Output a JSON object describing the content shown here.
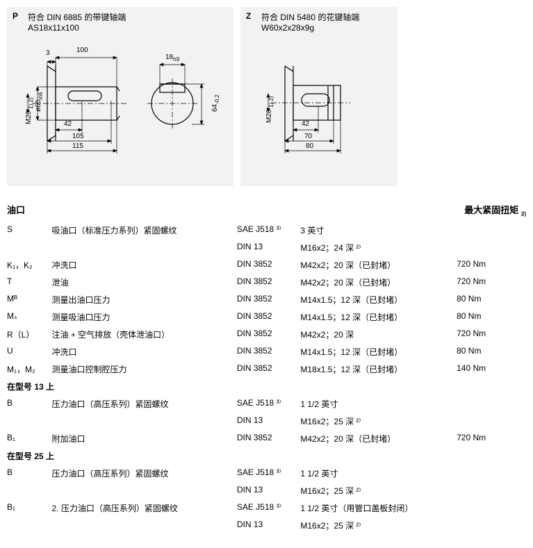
{
  "diagramP": {
    "letter": "P",
    "title": "符合 DIN 6885 的带键轴端",
    "subtitle": "AS18x11x100",
    "labels": {
      "top3": "3",
      "top100": "100",
      "top18": "18",
      "top18sub": "h9",
      "left_diam": "ø60",
      "left_diam_sub": "m6",
      "left_m20": "M20",
      "left_m20_sup": "1) 2)",
      "right_64": "64",
      "right_64_sub": "-0.2",
      "bot42": "42",
      "bot105": "105",
      "bot115": "115"
    }
  },
  "diagramZ": {
    "letter": "Z",
    "title": "符合 DIN 5480 的花键轴端",
    "subtitle": "W60x2x28x9g",
    "labels": {
      "left_m20": "M20",
      "left_m20_sup": "1) 2)",
      "bot42": "42",
      "bot70": "70",
      "bot80": "80"
    }
  },
  "ports": {
    "heading": "油口",
    "torque_heading": "最大紧固扭矩",
    "torque_sup": "2)",
    "rows": [
      {
        "sym": "S",
        "desc": "吸油口（标准压力系列）紧固螺纹",
        "std": "SAE J518 ³⁾",
        "spec": "3 英寸",
        "torque": ""
      },
      {
        "sym": "",
        "desc": "",
        "std": "DIN 13",
        "spec": "M16x2；24 深 ²⁾",
        "torque": ""
      },
      {
        "sym": "K₁，K₂",
        "desc": "冲洗口",
        "std": "DIN 3852",
        "spec": "M42x2；20 深（已封堵）",
        "torque": "720 Nm"
      },
      {
        "sym": "T",
        "desc": "泄油",
        "std": "DIN 3852",
        "spec": "M42x2；20 深（已封堵）",
        "torque": "720 Nm"
      },
      {
        "sym": "Mᴮ",
        "desc": "测量出油口压力",
        "std": "DIN 3852",
        "spec": "M14x1.5；12 深（已封堵）",
        "torque": "80 Nm"
      },
      {
        "sym": "Mₛ",
        "desc": "测量吸油口压力",
        "std": "DIN 3852",
        "spec": "M14x1.5；12 深（已封堵）",
        "torque": "80 Nm"
      },
      {
        "sym": "R（L）",
        "desc": "注油 + 空气排放（壳体泄油口）",
        "std": "DIN 3852",
        "spec": "M42x2；20 深",
        "torque": "720 Nm"
      },
      {
        "sym": "U",
        "desc": "冲洗口",
        "std": "DIN 3852",
        "spec": "M14x1.5；12 深（已封堵）",
        "torque": "80 Nm"
      },
      {
        "sym": "M₁，M₂",
        "desc": "测量油口控制腔压力",
        "std": "DIN 3852",
        "spec": "M18x1.5；12 深（已封堵）",
        "torque": "140 Nm"
      }
    ],
    "group13": {
      "heading": "在型号 13 上",
      "rows": [
        {
          "sym": "B",
          "desc": "压力油口（高压系列）紧固螺纹",
          "std": "SAE J518 ³⁾",
          "spec": "1 1/2 英寸",
          "torque": ""
        },
        {
          "sym": "",
          "desc": "",
          "std": "DIN 13",
          "spec": "M16x2；25 深 ²⁾",
          "torque": ""
        },
        {
          "sym": "B₁",
          "desc": "附加油口",
          "std": "DIN 3852",
          "spec": "M42x2；20 深（已封堵）",
          "torque": "720 Nm"
        }
      ]
    },
    "group25": {
      "heading": "在型号 25 上",
      "rows": [
        {
          "sym": "B",
          "desc": "压力油口（高压系列）紧固螺纹",
          "std": "SAE J518 ³⁾",
          "spec": "1 1/2 英寸",
          "torque": ""
        },
        {
          "sym": "",
          "desc": "",
          "std": "DIN 13",
          "spec": "M16x2；25 深 ²⁾",
          "torque": ""
        },
        {
          "sym": "B₁",
          "desc": "2. 压力油口（高压系列）紧固螺纹",
          "std": "SAE J518 ³⁾",
          "spec": "1 1/2 英寸（用管口盖板封闭）",
          "torque": ""
        },
        {
          "sym": "",
          "desc": "",
          "std": "DIN 13",
          "spec": "M16x2；25 深 ²⁾",
          "torque": ""
        }
      ]
    }
  },
  "style": {
    "bg_box": "#f2f2f2",
    "stroke": "#000000",
    "stroke_thin": 0.7,
    "stroke_med": 1.2,
    "fill_white": "#ffffff",
    "fill_grey": "#e0e0e0",
    "text_color": "#000000",
    "dim_font_size": 10,
    "base_font_size": 12
  }
}
